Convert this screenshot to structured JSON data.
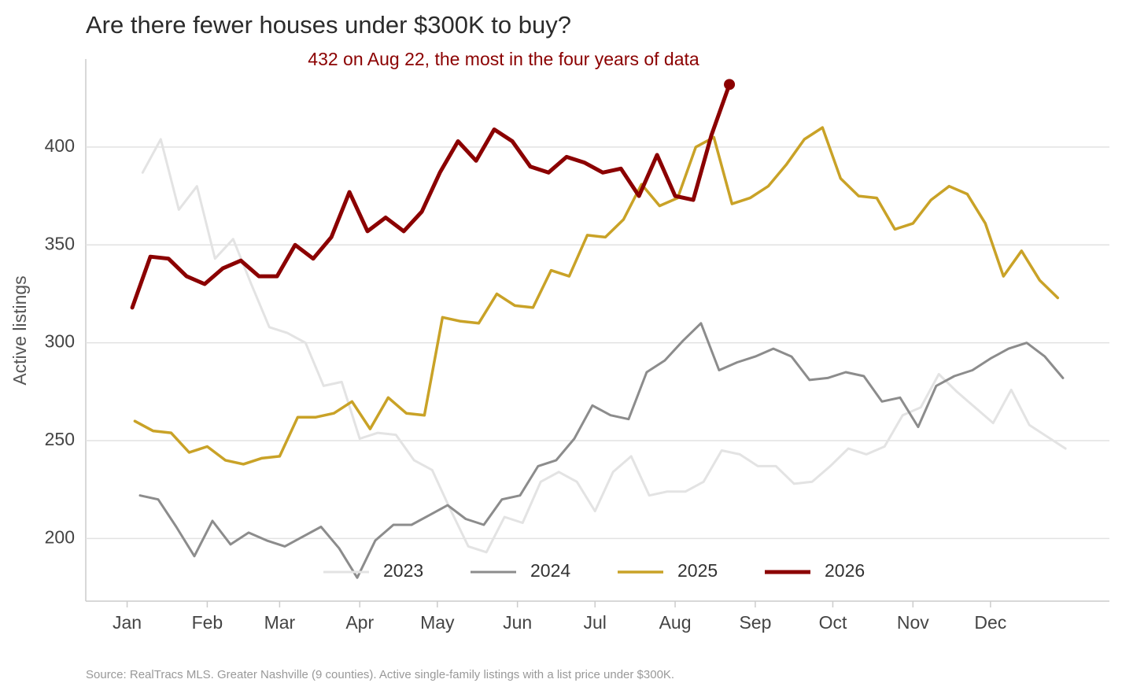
{
  "chart_data": {
    "type": "line",
    "title": "Are there fewer houses under $300K to buy?",
    "y_label": "Active listings",
    "annotation": "432 on Aug 22, the most in the four years of data",
    "source": "Source: RealTracs MLS. Greater Nashville (9 counties). Active single-family listings with a list price under $300K.",
    "xlim": [
      -16,
      380
    ],
    "xticks": [
      {
        "value": 0,
        "label": "Jan"
      },
      {
        "value": 31,
        "label": "Feb"
      },
      {
        "value": 59,
        "label": "Mar"
      },
      {
        "value": 90,
        "label": "Apr"
      },
      {
        "value": 120,
        "label": "May"
      },
      {
        "value": 151,
        "label": "Jun"
      },
      {
        "value": 181,
        "label": "Jul"
      },
      {
        "value": 212,
        "label": "Aug"
      },
      {
        "value": 243,
        "label": "Sep"
      },
      {
        "value": 273,
        "label": "Oct"
      },
      {
        "value": 304,
        "label": "Nov"
      },
      {
        "value": 334,
        "label": "Dec"
      }
    ],
    "ylim": [
      168,
      445
    ],
    "yticks": [
      200,
      250,
      300,
      350,
      400
    ],
    "grid": true,
    "legend": "bottom",
    "series": [
      {
        "name": "2023",
        "color": "#e3e3e3",
        "line_width": 3,
        "x": [
          6,
          13,
          20,
          27,
          34,
          41,
          48,
          55,
          62,
          69,
          76,
          83,
          90,
          97,
          104,
          111,
          118,
          125,
          132,
          139,
          146,
          153,
          160,
          167,
          174,
          181,
          188,
          195,
          202,
          209,
          216,
          223,
          230,
          237,
          244,
          251,
          258,
          265,
          272,
          279,
          286,
          293,
          300,
          307,
          314,
          321,
          328,
          335,
          342,
          349,
          356,
          363
        ],
        "values": [
          387,
          404,
          368,
          380,
          343,
          353,
          330,
          308,
          305,
          300,
          278,
          280,
          251,
          254,
          253,
          240,
          235,
          215,
          196,
          193,
          211,
          208,
          229,
          234,
          229,
          214,
          234,
          242,
          222,
          224,
          224,
          229,
          245,
          243,
          237,
          237,
          228,
          229,
          237,
          246,
          243,
          247,
          263,
          267,
          284,
          275,
          267,
          259,
          276,
          258,
          252,
          246
        ]
      },
      {
        "name": "2024",
        "color": "#8c8c8c",
        "line_width": 3,
        "x": [
          5,
          12,
          19,
          26,
          33,
          40,
          47,
          54,
          61,
          68,
          75,
          82,
          89,
          96,
          103,
          110,
          117,
          124,
          131,
          138,
          145,
          152,
          159,
          166,
          173,
          180,
          187,
          194,
          201,
          208,
          215,
          222,
          229,
          236,
          243,
          250,
          257,
          264,
          271,
          278,
          285,
          292,
          299,
          306,
          313,
          320,
          327,
          334,
          341,
          348,
          355,
          362
        ],
        "values": [
          222,
          220,
          206,
          191,
          209,
          197,
          203,
          199,
          196,
          201,
          206,
          195,
          180,
          199,
          207,
          207,
          212,
          217,
          210,
          207,
          220,
          222,
          237,
          240,
          251,
          268,
          263,
          261,
          285,
          291,
          301,
          310,
          286,
          290,
          293,
          297,
          293,
          281,
          282,
          285,
          283,
          270,
          272,
          257,
          278,
          283,
          286,
          292,
          297,
          300,
          293,
          282
        ]
      },
      {
        "name": "2025",
        "color": "#c9a227",
        "line_width": 3.5,
        "x": [
          3,
          10,
          17,
          24,
          31,
          38,
          45,
          52,
          59,
          66,
          73,
          80,
          87,
          94,
          101,
          108,
          115,
          122,
          129,
          136,
          143,
          150,
          157,
          164,
          171,
          178,
          185,
          192,
          199,
          206,
          213,
          220,
          227,
          234,
          241,
          248,
          255,
          262,
          269,
          276,
          283,
          290,
          297,
          304,
          311,
          318,
          325,
          332,
          339,
          346,
          353,
          360
        ],
        "values": [
          260,
          255,
          254,
          244,
          247,
          240,
          238,
          241,
          242,
          262,
          262,
          264,
          270,
          256,
          272,
          264,
          263,
          313,
          311,
          310,
          325,
          319,
          318,
          337,
          334,
          355,
          354,
          363,
          381,
          370,
          374,
          400,
          405,
          371,
          374,
          380,
          391,
          404,
          410,
          384,
          375,
          374,
          358,
          361,
          373,
          380,
          376,
          361,
          334,
          347,
          332,
          323
        ]
      },
      {
        "name": "2026",
        "color": "#8b0000",
        "line_width": 5,
        "x": [
          2,
          9,
          16,
          23,
          30,
          37,
          44,
          51,
          58,
          65,
          72,
          79,
          86,
          93,
          100,
          107,
          114,
          121,
          128,
          135,
          142,
          149,
          156,
          163,
          170,
          177,
          184,
          191,
          198,
          205,
          212,
          219,
          226,
          233
        ],
        "values": [
          318,
          344,
          343,
          334,
          330,
          338,
          342,
          334,
          334,
          350,
          343,
          354,
          377,
          357,
          364,
          357,
          367,
          387,
          403,
          393,
          409,
          403,
          390,
          387,
          395,
          392,
          387,
          389,
          375,
          396,
          375,
          373,
          406,
          432
        ]
      }
    ]
  }
}
